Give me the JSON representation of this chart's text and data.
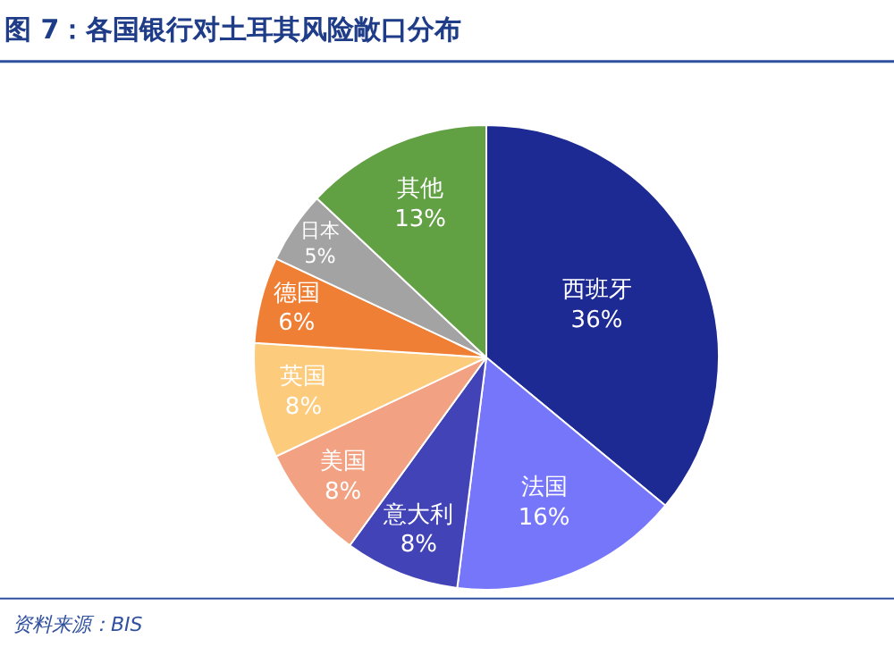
{
  "chart_data": {
    "type": "pie",
    "title": "图 7：各国银行对土耳其风险敞口分布",
    "categories": [
      "西班牙",
      "法国",
      "意大利",
      "美国",
      "英国",
      "德国",
      "日本",
      "其他"
    ],
    "values": [
      36,
      16,
      8,
      8,
      8,
      6,
      5,
      13
    ],
    "value_labels": [
      "36%",
      "16%",
      "8%",
      "8%",
      "8%",
      "6%",
      "5%",
      "13%"
    ],
    "colors": [
      "#1e2a94",
      "#7676fa",
      "#4343b8",
      "#f2a283",
      "#fccb7c",
      "#ef7f35",
      "#a3a3a3",
      "#62a044"
    ],
    "annotations": [
      "资料来源：BIS"
    ],
    "legend": false
  }
}
